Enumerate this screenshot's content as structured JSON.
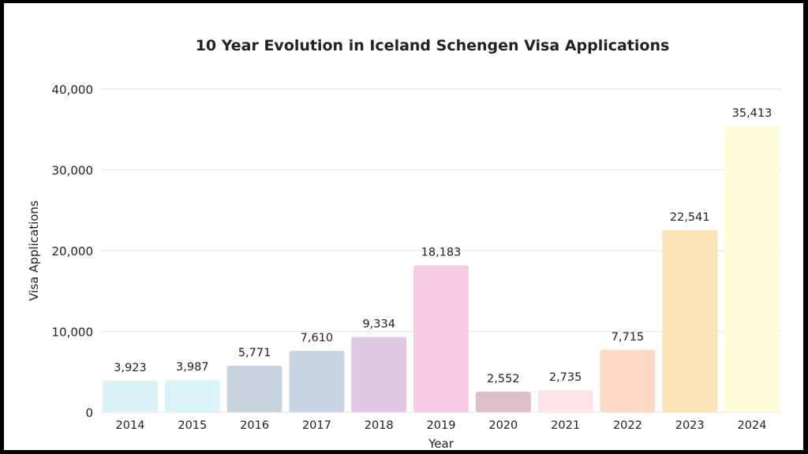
{
  "chart_data": {
    "type": "bar",
    "title": "10 Year Evolution in Iceland Schengen Visa Applications",
    "xlabel": "Year",
    "ylabel": "Visa Applications",
    "ylim": [
      0,
      40000
    ],
    "yticks": [
      0,
      10000,
      20000,
      30000,
      40000
    ],
    "ytick_labels": [
      "0",
      "10,000",
      "20,000",
      "30,000",
      "40,000"
    ],
    "grid": true,
    "categories": [
      "2014",
      "2015",
      "2016",
      "2017",
      "2018",
      "2019",
      "2020",
      "2021",
      "2022",
      "2023",
      "2024"
    ],
    "values": [
      3923,
      3987,
      5771,
      7610,
      9334,
      18183,
      2552,
      2735,
      7715,
      22541,
      35413
    ],
    "data_labels": [
      "3,923",
      "3,987",
      "5,771",
      "7,610",
      "9,334",
      "18,183",
      "2,552",
      "2,735",
      "7,715",
      "22,541",
      "35,413"
    ],
    "colors": [
      "#daf2f7",
      "#daf3f8",
      "#c9d3de",
      "#c8d5e3",
      "#e0c8e5",
      "#f5cbe6",
      "#dbbfca",
      "#fde4e8",
      "#fdd9c8",
      "#fae3b5",
      "#fefcd9"
    ]
  }
}
